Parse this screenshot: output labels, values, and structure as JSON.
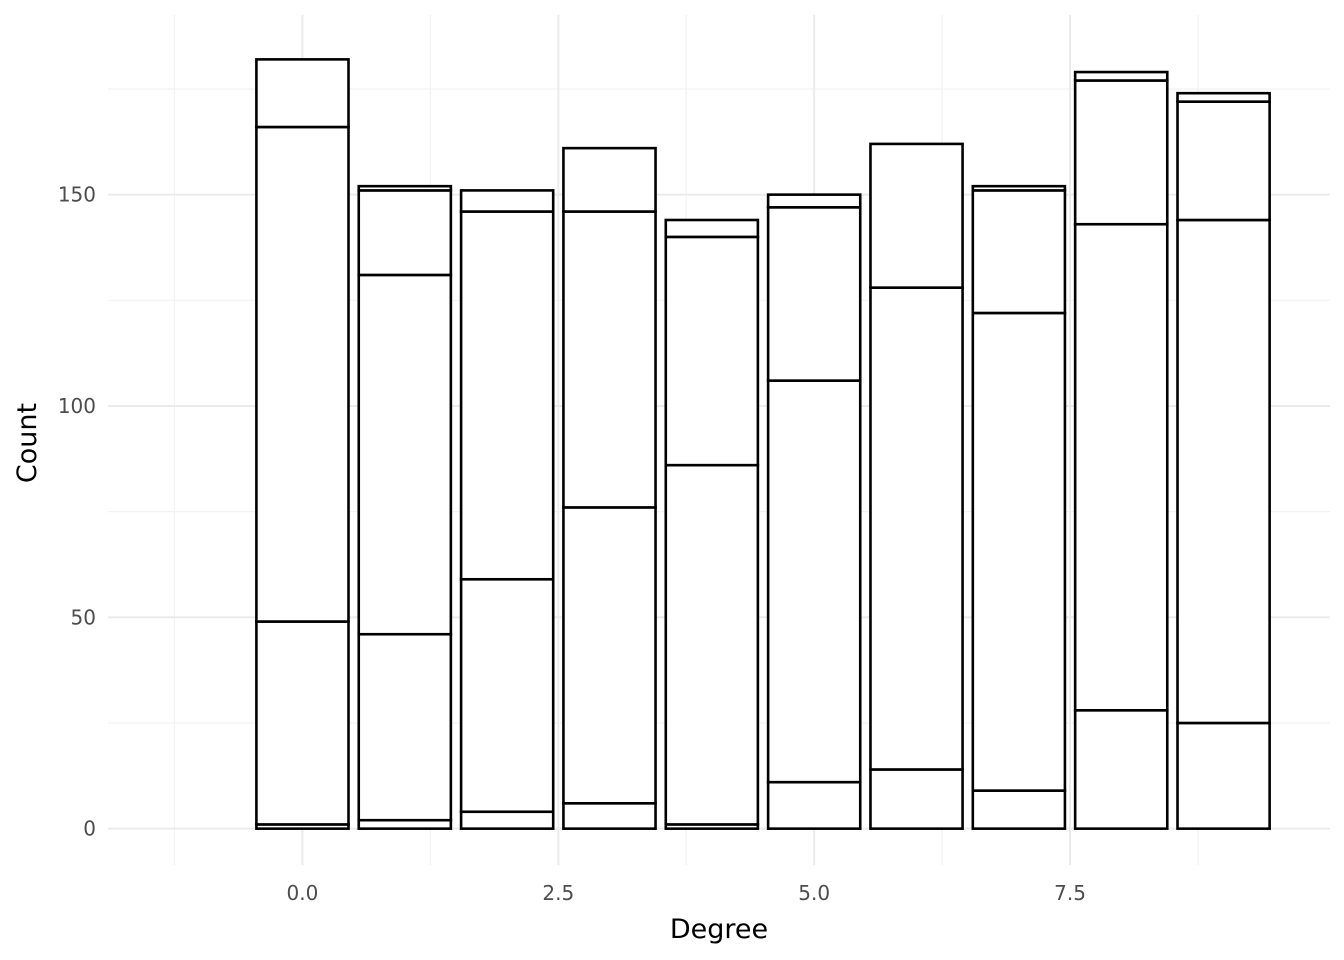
{
  "chart_data": {
    "type": "bar",
    "stacked": true,
    "xlabel": "Degree",
    "ylabel": "Count",
    "xlim": [
      -1.9,
      10.04
    ],
    "ylim": [
      -8.6,
      192.5
    ],
    "x_ticks": [
      "0.0",
      "2.5",
      "5.0",
      "7.5"
    ],
    "x_tick_values": [
      0,
      2.5,
      5,
      7.5
    ],
    "y_ticks": [
      "0",
      "50",
      "100",
      "150"
    ],
    "y_tick_values": [
      0,
      50,
      100,
      150
    ],
    "bar_fill": "#ffffff",
    "bar_outline": "#000000",
    "grid": true,
    "bars": [
      {
        "x": 0,
        "segment_tops": [
          1,
          49,
          166,
          182
        ]
      },
      {
        "x": 1,
        "segment_tops": [
          2,
          46,
          131,
          151,
          152
        ]
      },
      {
        "x": 2,
        "segment_tops": [
          4,
          59,
          146,
          151
        ]
      },
      {
        "x": 3,
        "segment_tops": [
          6,
          76,
          146,
          161
        ]
      },
      {
        "x": 4,
        "segment_tops": [
          1,
          86,
          140,
          144
        ]
      },
      {
        "x": 5,
        "segment_tops": [
          11,
          106,
          147,
          150
        ]
      },
      {
        "x": 6,
        "segment_tops": [
          14,
          128,
          162
        ]
      },
      {
        "x": 7,
        "segment_tops": [
          9,
          122,
          151,
          152
        ]
      },
      {
        "x": 8,
        "segment_tops": [
          28,
          143,
          177,
          179
        ]
      },
      {
        "x": 9,
        "segment_tops": [
          25,
          144,
          172,
          174
        ]
      }
    ]
  }
}
